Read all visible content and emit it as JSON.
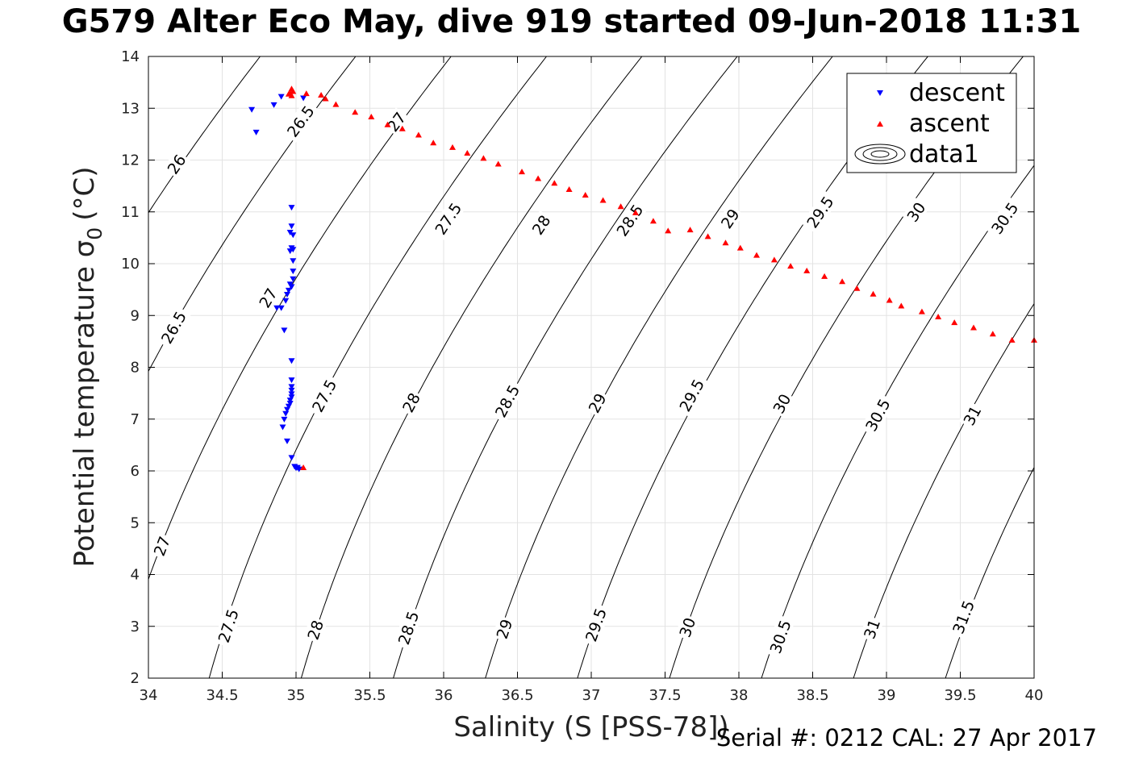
{
  "chart_data": {
    "type": "scatter",
    "title": "G579 Alter Eco May, dive 919 started 09-Jun-2018 11:31",
    "xlabel": "Salinity (S [PSS-78])",
    "ylabel": "Potential temperature σ",
    "ylabel_subscript": "0",
    "ylabel_unit": "(°C)",
    "xlim": [
      34,
      40
    ],
    "ylim": [
      2,
      14
    ],
    "xticks": [
      34,
      34.5,
      35,
      35.5,
      36,
      36.5,
      37,
      37.5,
      38,
      38.5,
      39,
      39.5,
      40
    ],
    "xtick_labels": [
      "34",
      "34.5",
      "35",
      "35.5",
      "36",
      "36.5",
      "37",
      "37.5",
      "38",
      "38.5",
      "39",
      "39.5",
      "40"
    ],
    "yticks": [
      2,
      3,
      4,
      5,
      6,
      7,
      8,
      9,
      10,
      11,
      12,
      13,
      14
    ],
    "ytick_labels": [
      "2",
      "3",
      "4",
      "5",
      "6",
      "7",
      "8",
      "9",
      "10",
      "11",
      "12",
      "13",
      "14"
    ],
    "grid": true,
    "legend_position": "top-right",
    "legend": [
      {
        "label": "descent",
        "marker": "triangle-down",
        "color": "#0000ff"
      },
      {
        "label": "ascent",
        "marker": "triangle-up",
        "color": "#ff0000"
      },
      {
        "label": "data1",
        "marker": "contour",
        "color": "#000000"
      }
    ],
    "series": [
      {
        "name": "descent",
        "marker": "triangle-down",
        "color": "#0000ff",
        "x": [
          34.7,
          34.73,
          34.85,
          34.9,
          35.05,
          34.97,
          34.97,
          34.96,
          34.98,
          34.97,
          34.98,
          34.96,
          34.98,
          34.98,
          34.98,
          34.96,
          34.97,
          34.95,
          34.94,
          34.93,
          34.9,
          34.87,
          34.92,
          34.97,
          34.97,
          34.97,
          34.97,
          34.97,
          34.97,
          34.96,
          34.96,
          34.95,
          34.94,
          34.93,
          34.92,
          34.91,
          34.94,
          34.97,
          34.99,
          35.0,
          35.02,
          35.01
        ],
        "y": [
          12.97,
          12.53,
          13.06,
          13.22,
          13.19,
          11.08,
          10.72,
          10.6,
          10.55,
          10.3,
          10.27,
          10.24,
          10.05,
          9.85,
          9.7,
          9.6,
          9.55,
          9.48,
          9.4,
          9.28,
          9.14,
          9.14,
          8.71,
          8.12,
          7.75,
          7.62,
          7.55,
          7.48,
          7.42,
          7.36,
          7.3,
          7.24,
          7.18,
          7.1,
          6.99,
          6.84,
          6.57,
          6.25,
          6.08,
          6.05,
          6.03,
          6.06
        ]
      },
      {
        "name": "ascent",
        "marker": "triangle-up",
        "color": "#ff0000",
        "x": [
          35.05,
          34.95,
          34.96,
          34.97,
          34.98,
          34.97,
          35.07,
          35.17,
          35.2,
          35.27,
          35.4,
          35.51,
          35.62,
          35.72,
          35.83,
          35.93,
          36.06,
          36.16,
          36.27,
          36.37,
          36.53,
          36.64,
          36.75,
          36.85,
          36.96,
          37.08,
          37.2,
          37.3,
          37.42,
          37.52,
          37.67,
          37.79,
          37.91,
          38.01,
          38.12,
          38.24,
          38.35,
          38.46,
          38.58,
          38.7,
          38.8,
          38.91,
          39.02,
          39.1,
          39.24,
          39.35,
          39.46,
          39.59,
          39.72,
          39.85,
          40.0
        ],
        "y": [
          6.07,
          13.28,
          13.3,
          13.38,
          13.33,
          13.25,
          13.29,
          13.26,
          13.19,
          13.08,
          12.93,
          12.84,
          12.69,
          12.61,
          12.49,
          12.34,
          12.25,
          12.14,
          12.04,
          11.93,
          11.78,
          11.65,
          11.56,
          11.44,
          11.33,
          11.23,
          11.11,
          10.99,
          10.83,
          10.64,
          10.66,
          10.53,
          10.41,
          10.31,
          10.17,
          10.08,
          9.96,
          9.87,
          9.76,
          9.66,
          9.53,
          9.42,
          9.3,
          9.19,
          9.08,
          8.98,
          8.87,
          8.77,
          8.65,
          8.53,
          8.53
        ]
      }
    ],
    "contours": [
      {
        "level": "26",
        "label_pos": [
          [
            34.19,
            11.92
          ]
        ]
      },
      {
        "level": "26.5",
        "label_pos": [
          [
            34.17,
            8.77
          ],
          [
            35.03,
            12.75
          ]
        ]
      },
      {
        "level": "27",
        "label_pos": [
          [
            34.09,
            4.55
          ],
          [
            34.81,
            9.34
          ],
          [
            35.68,
            12.74
          ]
        ]
      },
      {
        "level": "27.5",
        "label_pos": [
          [
            34.54,
            3.01
          ],
          [
            35.19,
            7.45
          ],
          [
            36.03,
            10.87
          ]
        ]
      },
      {
        "level": "28",
        "label_pos": [
          [
            35.13,
            2.93
          ],
          [
            35.78,
            7.32
          ],
          [
            36.66,
            10.75
          ]
        ]
      },
      {
        "level": "28.5",
        "label_pos": [
          [
            35.76,
            2.97
          ],
          [
            36.43,
            7.35
          ],
          [
            37.26,
            10.84
          ]
        ]
      },
      {
        "level": "29",
        "label_pos": [
          [
            36.41,
            2.95
          ],
          [
            37.04,
            7.31
          ],
          [
            37.94,
            10.87
          ]
        ]
      },
      {
        "level": "29.5",
        "label_pos": [
          [
            37.03,
            3.03
          ],
          [
            37.68,
            7.46
          ],
          [
            38.55,
            11.0
          ]
        ]
      },
      {
        "level": "30",
        "label_pos": [
          [
            37.65,
            2.98
          ],
          [
            38.29,
            7.3
          ],
          [
            39.2,
            11.0
          ]
        ]
      },
      {
        "level": "30.5",
        "label_pos": [
          [
            38.28,
            2.8
          ],
          [
            38.94,
            7.08
          ],
          [
            39.8,
            10.88
          ]
        ]
      },
      {
        "level": "31",
        "label_pos": [
          [
            38.9,
            2.95
          ],
          [
            39.58,
            7.07
          ]
        ]
      },
      {
        "level": "31.5",
        "label_pos": [
          [
            39.52,
            3.18
          ]
        ]
      }
    ]
  },
  "footer": {
    "serial": "Serial #: 0212  CAL: 27 Apr 2017"
  }
}
